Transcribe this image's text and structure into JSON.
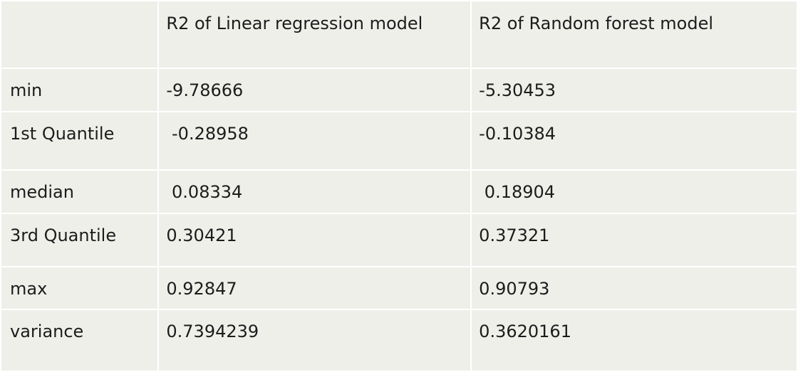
{
  "table": {
    "headers": [
      "",
      "R2 of Linear regression model",
      "R2 of Random forest model"
    ],
    "rows": [
      {
        "label": "min",
        "linear": "-9.78666",
        "forest": "-5.30453"
      },
      {
        "label": "1st Quantile",
        "linear": " -0.28958",
        "forest": "-0.10384"
      },
      {
        "label": "median",
        "linear": " 0.08334",
        "forest": " 0.18904"
      },
      {
        "label": "3rd Quantile",
        "linear": "0.30421",
        "forest": "0.37321"
      },
      {
        "label": "max",
        "linear": "0.92847",
        "forest": "0.90793"
      },
      {
        "label": "variance",
        "linear": "0.7394239",
        "forest": "0.3620161"
      }
    ]
  },
  "colors": {
    "cell_background": "#efefea",
    "grid_lines": "#ffffff",
    "text": "#1c1c1c"
  }
}
